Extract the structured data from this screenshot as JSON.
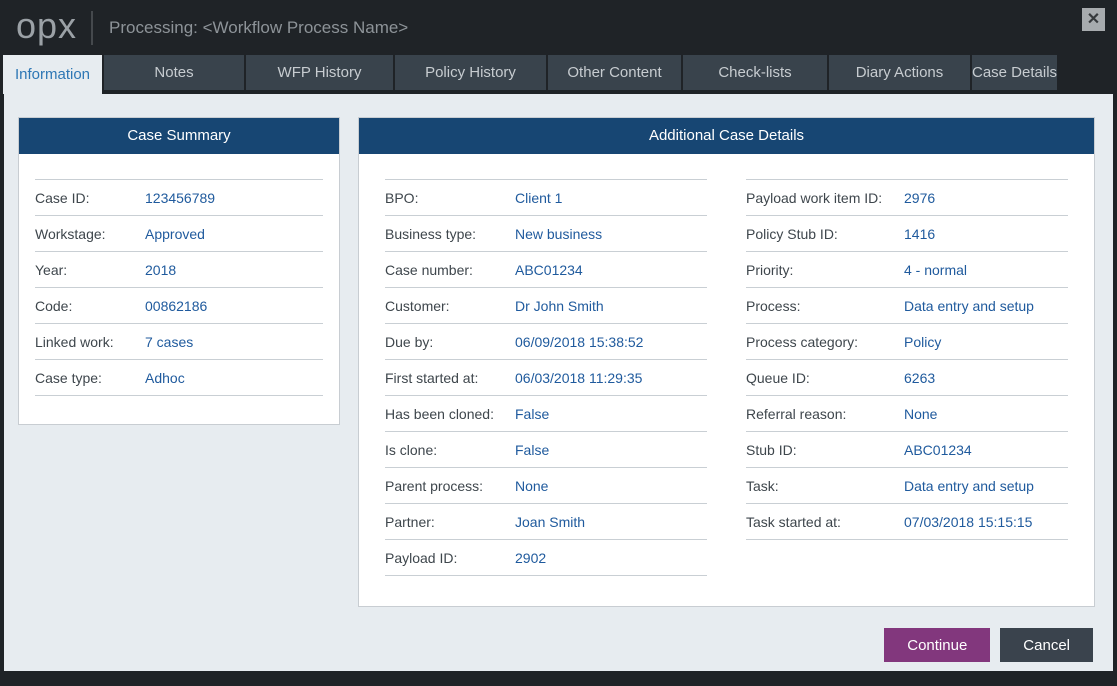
{
  "window": {
    "logo": "opx",
    "title": "Processing: <Workflow Process Name>",
    "close_glyph": "✕"
  },
  "tabs": [
    {
      "label": "Information",
      "active": true
    },
    {
      "label": "Notes",
      "active": false
    },
    {
      "label": "WFP History",
      "active": false
    },
    {
      "label": "Policy History",
      "active": false
    },
    {
      "label": "Other Content",
      "active": false
    },
    {
      "label": "Check-lists",
      "active": false
    },
    {
      "label": "Diary Actions",
      "active": false
    },
    {
      "label": "Case Details",
      "active": false
    }
  ],
  "case_summary": {
    "title": "Case Summary",
    "rows": [
      {
        "label": "Case ID:",
        "value": "123456789"
      },
      {
        "label": "Workstage:",
        "value": "Approved"
      },
      {
        "label": "Year:",
        "value": "2018"
      },
      {
        "label": "Code:",
        "value": "00862186"
      },
      {
        "label": "Linked work:",
        "value": "7 cases"
      },
      {
        "label": "Case type:",
        "value": "Adhoc"
      }
    ]
  },
  "additional_details": {
    "title": "Additional Case Details",
    "left_rows": [
      {
        "label": "BPO:",
        "value": "Client 1"
      },
      {
        "label": "Business type:",
        "value": "New business"
      },
      {
        "label": "Case number:",
        "value": "ABC01234"
      },
      {
        "label": "Customer:",
        "value": "Dr John Smith"
      },
      {
        "label": "Due by:",
        "value": "06/09/2018 15:38:52"
      },
      {
        "label": "First started at:",
        "value": "06/03/2018 11:29:35"
      },
      {
        "label": "Has been cloned:",
        "value": "False"
      },
      {
        "label": "Is clone:",
        "value": "False"
      },
      {
        "label": "Parent process:",
        "value": "None"
      },
      {
        "label": "Partner:",
        "value": "Joan Smith"
      },
      {
        "label": "Payload ID:",
        "value": "2902"
      }
    ],
    "right_rows": [
      {
        "label": "Payload work item ID:",
        "value": "2976"
      },
      {
        "label": "Policy Stub ID:",
        "value": "1416"
      },
      {
        "label": "Priority:",
        "value": "4 - normal"
      },
      {
        "label": "Process:",
        "value": "Data entry and setup"
      },
      {
        "label": "Process category:",
        "value": "Policy"
      },
      {
        "label": "Queue ID:",
        "value": "6263"
      },
      {
        "label": "Referral reason:",
        "value": "None"
      },
      {
        "label": "Stub ID:",
        "value": "ABC01234"
      },
      {
        "label": "Task:",
        "value": "Data entry and setup"
      },
      {
        "label": "Task started at:",
        "value": "07/03/2018 15:15:15"
      }
    ]
  },
  "footer": {
    "continue_label": "Continue",
    "cancel_label": "Cancel"
  },
  "colors": {
    "titlebar_bg": "#1f2327",
    "tab_inactive_bg": "#39434c",
    "tab_active_text": "#2e77b5",
    "content_bg": "#e7ecf0",
    "panel_header_bg": "#174673",
    "value_blue": "#1f5a9d",
    "label_gray": "#3e464c",
    "continue_purple": "#82377d",
    "cancel_slate": "#3a434d"
  }
}
